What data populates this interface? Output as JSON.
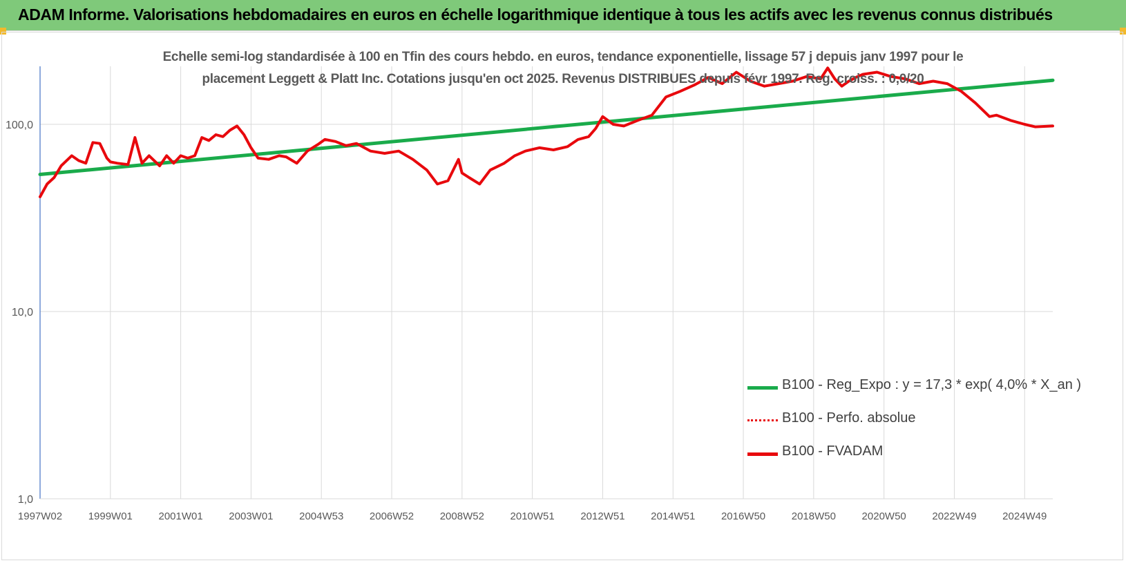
{
  "banner": {
    "title": "ADAM Informe. Valorisations hebdomadaires en euros en échelle logarithmique identique à tous les actifs avec les revenus connus distribués"
  },
  "colors": {
    "banner_bg": "#7fc97a",
    "trend": "#1aab4b",
    "fvadam": "#e8090d",
    "perf": "#e8090d",
    "grid": "#d9d9d9",
    "axis": "#4472c4",
    "corner": "#f2b92c"
  },
  "chart_data": {
    "type": "line",
    "title_lines": [
      "Echelle semi-log standardisée à 100 en Tfin des cours hebdo. en euros, tendance exponentielle, lissage 57 j depuis janv 1997 pour le",
      "placement Leggett & Platt Inc. Cotations jusqu'en oct 2025. Revenus DISTRIBUES depuis févr 1997. Reg. croiss. : 0,0/20"
    ],
    "y_scale": "log",
    "ylim": [
      1,
      200
    ],
    "y_ticks": [
      {
        "value": 1,
        "label": "1,0"
      },
      {
        "value": 10,
        "label": "10,0"
      },
      {
        "value": 100,
        "label": "100,0"
      }
    ],
    "xlim": [
      1997.0,
      2025.8
    ],
    "x_ticks": [
      {
        "x": 1997.0,
        "label": "1997W02"
      },
      {
        "x": 1999.0,
        "label": "1999W01"
      },
      {
        "x": 2001.0,
        "label": "2001W01"
      },
      {
        "x": 2003.0,
        "label": "2003W01"
      },
      {
        "x": 2005.0,
        "label": "2004W53"
      },
      {
        "x": 2007.0,
        "label": "2006W52"
      },
      {
        "x": 2009.0,
        "label": "2008W52"
      },
      {
        "x": 2011.0,
        "label": "2010W51"
      },
      {
        "x": 2013.0,
        "label": "2012W51"
      },
      {
        "x": 2015.0,
        "label": "2014W51"
      },
      {
        "x": 2017.0,
        "label": "2016W50"
      },
      {
        "x": 2019.0,
        "label": "2018W50"
      },
      {
        "x": 2021.0,
        "label": "2020W50"
      },
      {
        "x": 2023.0,
        "label": "2022W49"
      },
      {
        "x": 2025.0,
        "label": "2024W49"
      }
    ],
    "grid": true,
    "legend_position": "bottom-right",
    "series": [
      {
        "name": "B100 - Reg_Expo : y = 17,3 * exp( 4,0% *  X_an )",
        "style": "solid-thick",
        "x": [
          1997.0,
          2025.8
        ],
        "y": [
          54,
          172
        ]
      },
      {
        "name": "B100 - Perfo. absolue",
        "style": "dotted",
        "x": [],
        "y": []
      },
      {
        "name": "B100 - FVADAM",
        "style": "solid-thick",
        "x": [
          1997.0,
          1997.2,
          1997.4,
          1997.6,
          1997.9,
          1998.1,
          1998.3,
          1998.5,
          1998.7,
          1998.9,
          1999.0,
          1999.2,
          1999.5,
          1999.7,
          1999.9,
          2000.1,
          2000.4,
          2000.6,
          2000.8,
          2001.0,
          2001.2,
          2001.4,
          2001.6,
          2001.8,
          2002.0,
          2002.2,
          2002.4,
          2002.6,
          2002.8,
          2003.0,
          2003.2,
          2003.5,
          2003.8,
          2004.0,
          2004.3,
          2004.6,
          2004.9,
          2005.1,
          2005.4,
          2005.7,
          2006.0,
          2006.4,
          2006.8,
          2007.2,
          2007.6,
          2008.0,
          2008.3,
          2008.6,
          2008.9,
          2009.0,
          2009.2,
          2009.5,
          2009.8,
          2010.2,
          2010.5,
          2010.8,
          2011.2,
          2011.6,
          2012.0,
          2012.3,
          2012.6,
          2012.8,
          2013.0,
          2013.3,
          2013.6,
          2014.0,
          2014.4,
          2014.8,
          2015.2,
          2015.6,
          2016.0,
          2016.4,
          2016.8,
          2017.2,
          2017.6,
          2018.0,
          2018.4,
          2018.8,
          2019.2,
          2019.4,
          2019.6,
          2019.8,
          2020.0,
          2020.2,
          2020.4,
          2020.8,
          2021.2,
          2021.6,
          2022.0,
          2022.4,
          2022.8,
          2023.2,
          2023.6,
          2024.0,
          2024.2,
          2024.6,
          2025.0,
          2025.3,
          2025.8
        ],
        "y": [
          41,
          48,
          52,
          60,
          68,
          64,
          62,
          80,
          79,
          66,
          63,
          62,
          61,
          85,
          62,
          68,
          60,
          68,
          62,
          68,
          66,
          68,
          85,
          82,
          88,
          86,
          93,
          98,
          88,
          75,
          66,
          65,
          68,
          67,
          62,
          72,
          78,
          83,
          81,
          77,
          79,
          72,
          70,
          72,
          65,
          57,
          48,
          50,
          65,
          55,
          52,
          48,
          57,
          62,
          68,
          72,
          75,
          73,
          76,
          83,
          86,
          95,
          110,
          100,
          98,
          105,
          112,
          140,
          150,
          162,
          178,
          165,
          190,
          170,
          160,
          165,
          170,
          180,
          175,
          200,
          175,
          160,
          170,
          178,
          185,
          190,
          180,
          175,
          165,
          170,
          165,
          150,
          130,
          110,
          112,
          105,
          100,
          97,
          98
        ]
      }
    ]
  }
}
